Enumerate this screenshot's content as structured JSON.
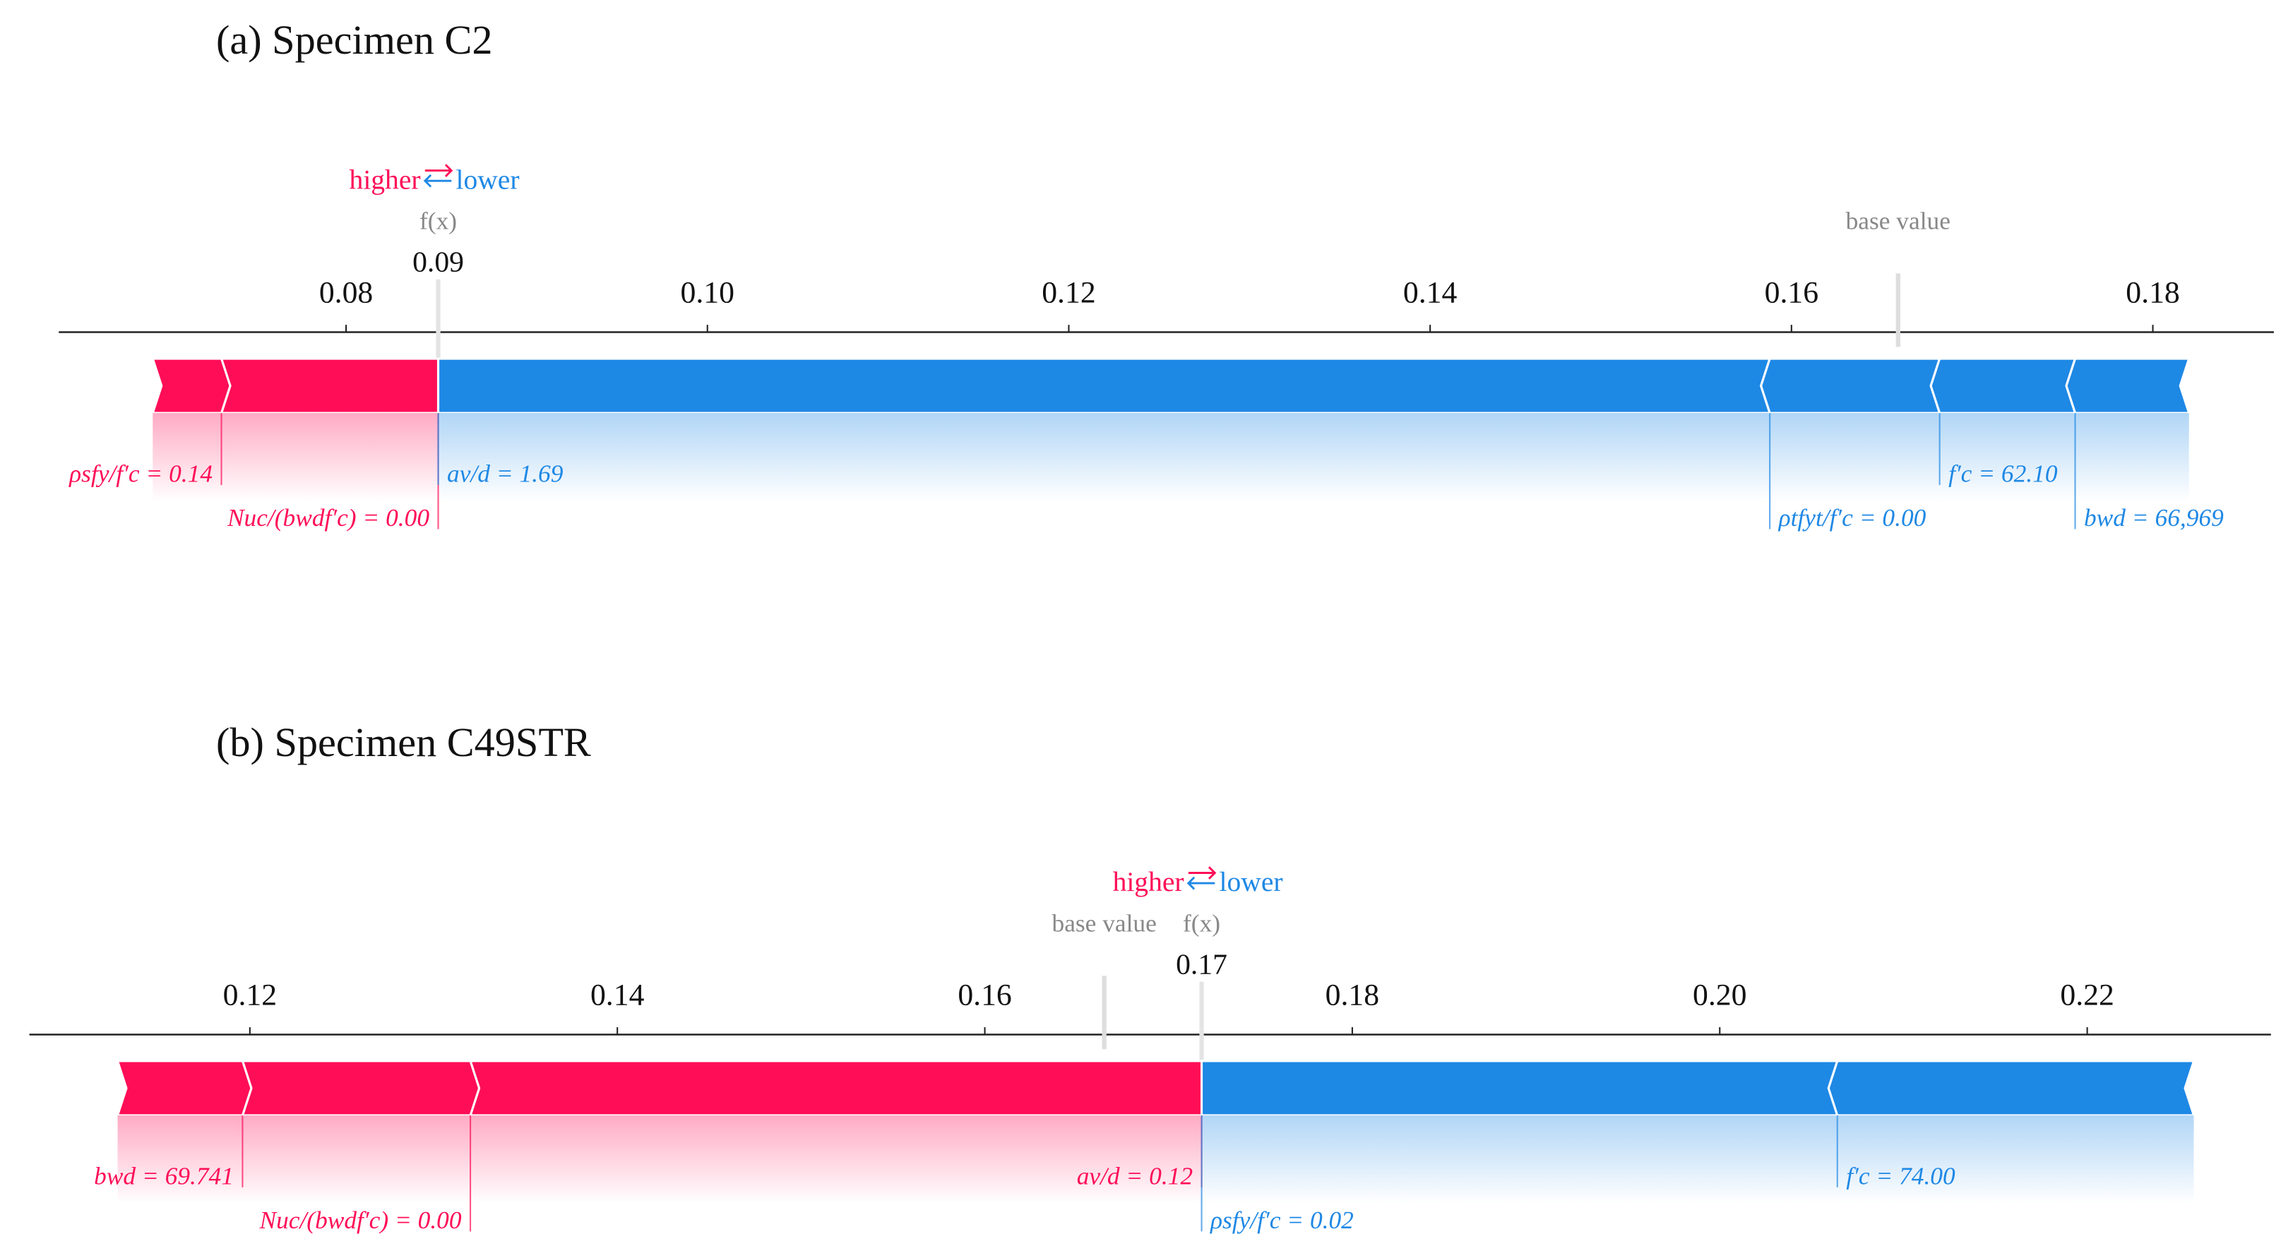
{
  "chart_data": [
    {
      "type": "force",
      "title": "(a) Specimen C2",
      "higher_label": "higher",
      "lower_label": "lower",
      "fx_label": "f(x)",
      "base_label": "base value",
      "fx": {
        "value": 0.0851,
        "label": "0.09"
      },
      "base_value": 0.1659,
      "positive_color": "#ff0d57",
      "negative_color": "#1e88e5",
      "xlim": [
        0.0641,
        0.1867
      ],
      "xticks": [
        0.08,
        {
          "value": 0.1,
          "label": "0.10"
        },
        0.12,
        0.14,
        0.16,
        0.18
      ],
      "features": [
        {
          "name": "Nuc/(bwdf′c) = 0.00",
          "value": 0.012
        },
        {
          "name": "ρsfy/f′c = 0.14",
          "value": 0.0038
        },
        {
          "name": "av/d = 1.69",
          "value": -0.0737
        },
        {
          "name": "ρtfyt/f′c = 0.00",
          "value": -0.0094
        },
        {
          "name": "f′c = 62.10",
          "value": -0.0075
        },
        {
          "name": "bwd = 66,969",
          "value": -0.0063
        }
      ]
    },
    {
      "type": "force",
      "title": "(b) Specimen C49STR",
      "higher_label": "higher",
      "lower_label": "lower",
      "fx_label": "f(x)",
      "base_label": "base value",
      "fx": {
        "value": 0.1718,
        "label": "0.17"
      },
      "base_value": 0.1665,
      "positive_color": "#ff0d57",
      "negative_color": "#1e88e5",
      "xlim": [
        0.108,
        0.23
      ],
      "xticks": [
        0.12,
        0.14,
        0.16,
        0.18,
        {
          "value": 0.2,
          "label": "0.20"
        },
        0.22
      ],
      "features": [
        {
          "name": "av/d = 0.12",
          "value": 0.0398
        },
        {
          "name": "Nuc/(bwdf′c) = 0.00",
          "value": 0.0124
        },
        {
          "name": "bwd = 69.741",
          "value": 0.0068
        },
        {
          "name": "ρsfy/f′c = 0.02",
          "value": -0.0346
        },
        {
          "name": "f′c = 74.00",
          "value": -0.0194
        }
      ]
    }
  ]
}
